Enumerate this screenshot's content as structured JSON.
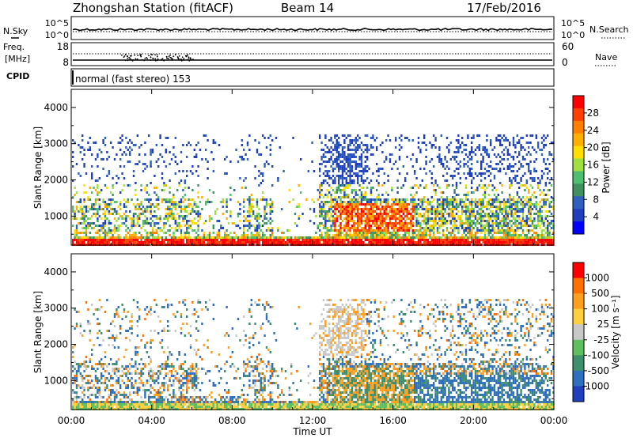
{
  "header": {
    "station": "Zhongshan Station (fitACF)",
    "beam": "Beam 14",
    "date": "17/Feb/2016"
  },
  "noise_panel": {
    "left_label": "N.Sky",
    "left_ticks": [
      "10^5",
      "10^0"
    ],
    "right_ticks": [
      "10^5",
      "10^0"
    ],
    "right_label": "N.Search"
  },
  "freq_panel": {
    "left_label_1": "Freq.",
    "left_label_2": "[MHz]",
    "left_ticks": [
      "18",
      "8"
    ],
    "right_ticks": [
      "60",
      "0"
    ],
    "right_label": "Nave"
  },
  "cpid_panel": {
    "label": "CPID",
    "text": "normal (fast stereo) 153"
  },
  "power_panel": {
    "ylabel": "Slant Range [km]",
    "yticks": [
      "4000",
      "3000",
      "2000",
      "1000"
    ],
    "colorbar_label": "Power [dB]",
    "colorbar_ticks": [
      "28",
      "24",
      "20",
      "16",
      "12",
      "8",
      "4"
    ],
    "colors": [
      "#0000ff",
      "#1f3fbf",
      "#2f5fbf",
      "#3f8f5f",
      "#4fbf6f",
      "#9fdf3f",
      "#ffdf00",
      "#ffaf00",
      "#ff7f00",
      "#ff3f00",
      "#ff0000"
    ]
  },
  "velocity_panel": {
    "ylabel": "Slant Range [km]",
    "yticks": [
      "4000",
      "3000",
      "2000",
      "1000"
    ],
    "colorbar_label": "Velocity [m s⁻¹]",
    "colorbar_ticks": [
      "1000",
      "500",
      "100",
      "25",
      "-25",
      "-100",
      "-500",
      "-1000"
    ],
    "colors": [
      "#1f3fbf",
      "#2f6fbf",
      "#3f8f6f",
      "#5fbf5f",
      "#c8c8c8",
      "#ffcf3f",
      "#ff9f1f",
      "#ff6f00",
      "#ff0000"
    ]
  },
  "xaxis": {
    "label": "Time UT",
    "ticks": [
      "00:00",
      "04:00",
      "08:00",
      "12:00",
      "16:00",
      "20:00",
      "00:00"
    ]
  },
  "chart_data": {
    "type": "heatmap",
    "title": "Zhongshan Station (fitACF)",
    "xlabel": "Time UT",
    "ylabel": "Slant Range [km]",
    "xlim": [
      "00:00",
      "24:00"
    ],
    "ylim": [
      200,
      4500
    ]
  }
}
